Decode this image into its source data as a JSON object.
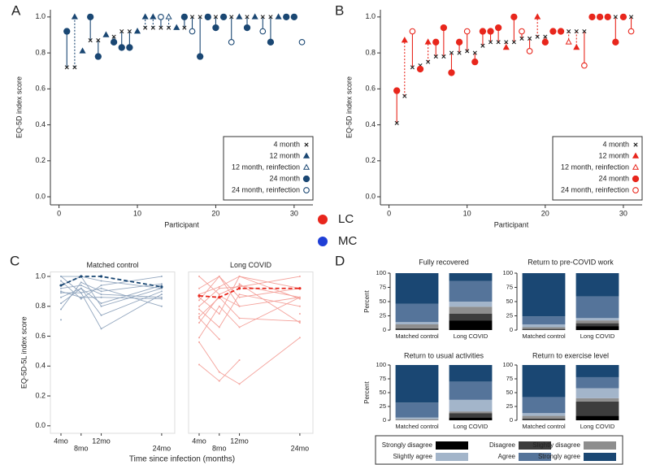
{
  "panel_letters": [
    "A",
    "B",
    "C",
    "D"
  ],
  "group_legend": [
    {
      "name": "LC",
      "color": "#e8261c"
    },
    {
      "name": "MC",
      "color": "#1f3fd6"
    }
  ],
  "chart_data": [
    {
      "type": "dropline",
      "xlabel": "Participant",
      "ylabel": "EQ-5D index score",
      "color": "#1a4773",
      "legend_position": "lower right",
      "xlim": [
        -1.1,
        32.4
      ],
      "ylim": [
        -0.045,
        1.04
      ],
      "xticks": [
        0,
        10,
        20,
        30
      ],
      "yticks": [
        {
          "value": 0,
          "label": "0.0"
        },
        0.2,
        0.4,
        0.6,
        0.8,
        {
          "value": 1,
          "label": "1.0"
        }
      ],
      "x": [
        1,
        2,
        3,
        4,
        5,
        6,
        7,
        8,
        9,
        10,
        11,
        12,
        13,
        14,
        15,
        16,
        17,
        18,
        19,
        20,
        21,
        22,
        23,
        24,
        25,
        26,
        27,
        28,
        29,
        30,
        31
      ],
      "series": [
        {
          "name": "4 month",
          "marker": "x",
          "values": [
            0.72,
            0.72,
            null,
            0.87,
            0.87,
            null,
            0.89,
            0.92,
            0.92,
            null,
            0.94,
            0.94,
            0.94,
            0.94,
            null,
            0.94,
            1.0,
            1.0,
            null,
            1.0,
            null,
            1.0,
            null,
            1.0,
            null,
            1.0,
            1.0,
            null,
            1.0,
            null,
            null
          ]
        },
        {
          "name": "12 month",
          "marker": "triangle",
          "stem": "dashed",
          "values": [
            null,
            1.0,
            0.81,
            null,
            null,
            0.9,
            null,
            null,
            null,
            0.92,
            1.0,
            1.0,
            null,
            null,
            0.94,
            null,
            null,
            null,
            null,
            null,
            null,
            null,
            1.0,
            null,
            1.0,
            null,
            null,
            1.0,
            null,
            null,
            null
          ]
        },
        {
          "name": "12 month, reinfection",
          "marker": "triangle-open",
          "stem": "dashed",
          "values": [
            null,
            null,
            null,
            null,
            null,
            null,
            null,
            null,
            null,
            null,
            null,
            null,
            null,
            1.0,
            null,
            null,
            null,
            null,
            null,
            null,
            null,
            null,
            null,
            null,
            null,
            null,
            null,
            null,
            null,
            null,
            null
          ]
        },
        {
          "name": "24 month",
          "marker": "circle",
          "stem": "solid",
          "values": [
            0.92,
            null,
            null,
            1.0,
            0.78,
            null,
            0.86,
            0.83,
            0.83,
            null,
            null,
            null,
            null,
            null,
            null,
            1.0,
            null,
            0.78,
            1.0,
            0.94,
            1.0,
            null,
            null,
            0.94,
            null,
            null,
            0.86,
            null,
            1.0,
            1.0,
            null
          ]
        },
        {
          "name": "24 month, reinfection",
          "marker": "circle-open",
          "stem": "solid",
          "values": [
            null,
            null,
            null,
            null,
            null,
            null,
            null,
            null,
            null,
            null,
            null,
            null,
            1.0,
            null,
            null,
            null,
            0.92,
            null,
            null,
            null,
            null,
            0.86,
            null,
            null,
            null,
            0.92,
            null,
            null,
            null,
            null,
            0.86
          ]
        }
      ]
    },
    {
      "type": "dropline",
      "xlabel": "Participant",
      "ylabel": "EQ-5D index score",
      "color": "#e8261c",
      "legend_position": "lower right",
      "xlim": [
        -1.1,
        32.4
      ],
      "ylim": [
        -0.045,
        1.04
      ],
      "xticks": [
        0,
        10,
        20,
        30
      ],
      "yticks": [
        {
          "value": 0,
          "label": "0.0"
        },
        0.2,
        0.4,
        0.6,
        0.8,
        {
          "value": 1,
          "label": "1.0"
        }
      ],
      "x": [
        1,
        2,
        3,
        4,
        5,
        6,
        7,
        8,
        9,
        10,
        11,
        12,
        13,
        14,
        15,
        16,
        17,
        18,
        19,
        20,
        21,
        22,
        23,
        24,
        25,
        26,
        27,
        28,
        29,
        30,
        31
      ],
      "series": [
        {
          "name": "4 month",
          "marker": "x",
          "values": [
            0.41,
            0.56,
            0.72,
            0.73,
            0.75,
            0.78,
            0.78,
            0.8,
            0.8,
            0.81,
            0.8,
            0.84,
            0.86,
            0.86,
            0.86,
            0.86,
            0.88,
            0.88,
            0.89,
            0.89,
            null,
            null,
            0.92,
            0.92,
            0.92,
            null,
            null,
            null,
            1.0,
            1.0,
            1.0
          ]
        },
        {
          "name": "12 month",
          "marker": "triangle",
          "stem": "dashed",
          "values": [
            null,
            0.87,
            null,
            null,
            0.86,
            null,
            null,
            null,
            null,
            null,
            null,
            null,
            null,
            null,
            0.83,
            null,
            null,
            null,
            1.0,
            null,
            null,
            null,
            null,
            0.83,
            null,
            null,
            null,
            null,
            null,
            null,
            null
          ]
        },
        {
          "name": "12 month, reinfection",
          "marker": "triangle-open",
          "stem": "dashed",
          "values": [
            null,
            null,
            null,
            null,
            null,
            null,
            null,
            null,
            null,
            null,
            null,
            null,
            null,
            null,
            null,
            null,
            null,
            null,
            null,
            null,
            null,
            null,
            0.86,
            null,
            null,
            null,
            null,
            null,
            null,
            null,
            null
          ]
        },
        {
          "name": "24 month",
          "marker": "circle",
          "stem": "solid",
          "values": [
            0.59,
            null,
            null,
            0.71,
            null,
            0.86,
            0.94,
            0.69,
            0.86,
            null,
            0.75,
            0.92,
            0.92,
            0.94,
            null,
            1.0,
            null,
            null,
            null,
            0.86,
            0.92,
            0.92,
            null,
            null,
            null,
            1.0,
            1.0,
            1.0,
            0.86,
            1.0,
            null
          ]
        },
        {
          "name": "24 month, reinfection",
          "marker": "circle-open",
          "stem": "solid",
          "values": [
            null,
            null,
            0.92,
            null,
            null,
            null,
            null,
            null,
            null,
            0.92,
            null,
            null,
            null,
            null,
            null,
            null,
            0.92,
            0.81,
            null,
            null,
            null,
            null,
            null,
            null,
            0.73,
            null,
            null,
            null,
            null,
            null,
            0.92
          ]
        }
      ]
    },
    {
      "type": "spaghetti",
      "title": "Matched control",
      "ylabel": "EQ-5D-5L index score",
      "xlabel": "Time since infection (months)",
      "x": [
        4,
        8,
        12,
        24
      ],
      "xlim": [
        1.9,
        26.6
      ],
      "ylim": [
        -0.05,
        1.03
      ],
      "xticks": [
        {
          "value": 4,
          "label": "4mo"
        },
        {
          "value": 8,
          "label": "8mo"
        },
        {
          "value": 12,
          "label": "12mo"
        },
        {
          "value": 24,
          "label": "24mo"
        }
      ],
      "yticks": [
        {
          "value": 0,
          "label": "0.0"
        },
        0.2,
        0.4,
        0.6,
        0.8,
        {
          "value": 1,
          "label": "1.0"
        }
      ],
      "series": [
        {
          "color": "#93a7bf",
          "values": [
            0.92,
            0.94,
            0.88,
            0.86
          ]
        },
        {
          "color": "#93a7bf",
          "values": [
            0.86,
            0.92,
            0.82,
            0.94
          ]
        },
        {
          "color": "#93a7bf",
          "values": [
            1.0,
            0.89,
            0.65,
            0.88
          ]
        },
        {
          "color": "#93a7bf",
          "values": [
            0.82,
            0.92,
            0.74,
            0.9
          ]
        },
        {
          "color": "#93a7bf",
          "values": [
            0.71,
            null,
            0.86,
            null
          ]
        },
        {
          "color": "#93a7bf",
          "values": [
            0.89,
            0.89,
            0.92,
            0.8
          ]
        },
        {
          "color": "#93a7bf",
          "values": [
            0.94,
            1.0,
            0.8,
            0.92
          ]
        },
        {
          "color": "#93a7bf",
          "values": [
            0.97,
            0.85,
            0.94,
            1.0
          ]
        },
        {
          "color": "#93a7bf",
          "values": [
            0.78,
            0.96,
            0.9,
            0.95
          ]
        },
        {
          "color": "#93a7bf",
          "values": [
            0.9,
            0.86,
            0.86,
            0.85
          ]
        },
        {
          "color": "#93a7bf",
          "values": [
            1.0,
            1.0,
            0.97,
            0.92
          ]
        },
        {
          "color": "#1a4773",
          "dashed": true,
          "values": [
            0.94,
            1.0,
            1.0,
            0.93
          ]
        }
      ]
    },
    {
      "type": "spaghetti",
      "title": "Long COVID",
      "x": [
        4,
        8,
        12,
        24
      ],
      "xlim": [
        1.9,
        26.6
      ],
      "ylim": [
        -0.05,
        1.03
      ],
      "xticks": [
        {
          "value": 4,
          "label": "4mo"
        },
        {
          "value": 8,
          "label": "8mo"
        },
        {
          "value": 12,
          "label": "12mo"
        },
        {
          "value": 24,
          "label": "24mo"
        }
      ],
      "series": [
        {
          "color": "#f4a29b",
          "values": [
            0.41,
            0.3,
            0.44,
            null
          ]
        },
        {
          "color": "#f4a29b",
          "values": [
            0.56,
            0.36,
            0.28,
            0.59
          ]
        },
        {
          "color": "#f4a29b",
          "values": [
            0.72,
            0.58,
            null,
            0.75
          ]
        },
        {
          "color": "#f4a29b",
          "values": [
            0.59,
            0.8,
            0.66,
            0.86
          ]
        },
        {
          "color": "#f4a29b",
          "values": [
            0.86,
            0.75,
            1.0,
            0.92
          ]
        },
        {
          "color": "#f4a29b",
          "values": [
            0.73,
            0.86,
            0.72,
            0.7
          ]
        },
        {
          "color": "#f4a29b",
          "values": [
            0.8,
            0.92,
            0.93,
            1.0
          ]
        },
        {
          "color": "#f4a29b",
          "values": [
            0.92,
            1.0,
            0.8,
            0.86
          ]
        },
        {
          "color": "#f4a29b",
          "values": [
            0.69,
            0.87,
            0.8,
            null
          ]
        },
        {
          "color": "#f4a29b",
          "values": [
            1.0,
            0.88,
            0.94,
            0.86
          ]
        },
        {
          "color": "#f4a29b",
          "values": [
            0.78,
            0.66,
            0.88,
            0.8
          ]
        },
        {
          "color": "#f4a29b",
          "values": [
            0.88,
            0.93,
            1.0,
            0.85
          ]
        },
        {
          "color": "#f4a29b",
          "values": [
            0.84,
            1.0,
            0.86,
            0.92
          ]
        },
        {
          "color": "#f4a29b",
          "values": [
            0.75,
            null,
            0.95,
            0.69
          ]
        },
        {
          "color": "#e8261c",
          "dashed": true,
          "values": [
            0.87,
            0.86,
            0.92,
            0.92
          ]
        }
      ]
    },
    {
      "type": "stacked_bar_grid",
      "ylabel": "Percent",
      "ylim": [
        0,
        100
      ],
      "yticks": [
        0,
        25,
        50,
        75,
        100
      ],
      "legend_position": "bottom",
      "series": [
        {
          "name": "Strongly disagree",
          "color": "#000000"
        },
        {
          "name": "Disagree",
          "color": "#3d3d3d"
        },
        {
          "name": "Slightly disagree",
          "color": "#8e8e8e"
        },
        {
          "name": "Slightly agree",
          "color": "#a3b5ca"
        },
        {
          "name": "Agree",
          "color": "#55749a"
        },
        {
          "name": "Strongly agree",
          "color": "#1a4773"
        }
      ],
      "subplots": [
        {
          "title": "Fully recovered",
          "categories": [
            "Matched control",
            "Long COVID"
          ],
          "values": [
            [
              0,
              3,
              7,
              4,
              32,
              54
            ],
            [
              17,
              12,
              12,
              9,
              36,
              14
            ]
          ]
        },
        {
          "title": "Return to pre-COVID work",
          "categories": [
            "Matched control",
            "Long COVID"
          ],
          "values": [
            [
              0,
              2,
              3,
              5,
              14,
              76
            ],
            [
              7,
              5,
              5,
              4,
              38,
              41
            ]
          ]
        },
        {
          "title": "Return to usual activities",
          "categories": [
            "Matched control",
            "Long COVID"
          ],
          "values": [
            [
              0,
              0,
              2,
              3,
              27,
              68
            ],
            [
              5,
              8,
              3,
              21,
              33,
              30
            ]
          ]
        },
        {
          "title": "Return to exercise level",
          "categories": [
            "Matched control",
            "Long COVID"
          ],
          "values": [
            [
              0,
              3,
              5,
              5,
              29,
              58
            ],
            [
              8,
              26,
              6,
              18,
              20,
              22
            ]
          ]
        }
      ]
    }
  ]
}
